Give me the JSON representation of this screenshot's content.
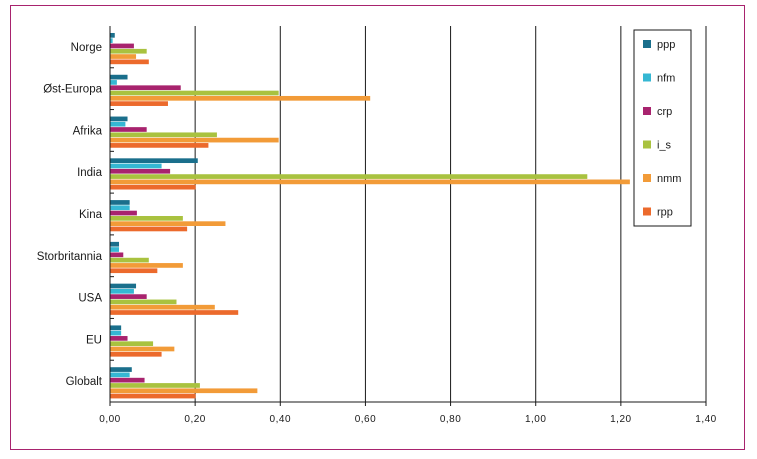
{
  "chart_data": {
    "type": "bar",
    "orientation": "horizontal",
    "categories": [
      "Norge",
      "Øst-Europa",
      "Afrika",
      "India",
      "Kina",
      "Storbritannia",
      "USA",
      "EU",
      "Globalt"
    ],
    "series": [
      {
        "name": "ppp",
        "color": "#1a6f8c",
        "values": [
          0.01,
          0.04,
          0.04,
          0.205,
          0.045,
          0.02,
          0.06,
          0.025,
          0.05
        ]
      },
      {
        "name": "nfm",
        "color": "#35b7d3",
        "values": [
          0.005,
          0.015,
          0.035,
          0.12,
          0.045,
          0.02,
          0.055,
          0.025,
          0.045
        ]
      },
      {
        "name": "crp",
        "color": "#a8236e",
        "values": [
          0.055,
          0.165,
          0.085,
          0.14,
          0.062,
          0.03,
          0.085,
          0.04,
          0.08
        ]
      },
      {
        "name": "i_s",
        "color": "#a9c23f",
        "values": [
          0.085,
          0.395,
          0.25,
          1.12,
          0.17,
          0.09,
          0.155,
          0.1,
          0.21
        ]
      },
      {
        "name": "nmm",
        "color": "#f29b38",
        "values": [
          0.06,
          0.61,
          0.395,
          1.22,
          0.27,
          0.17,
          0.245,
          0.15,
          0.345
        ]
      },
      {
        "name": "rpp",
        "color": "#ec6a2c",
        "values": [
          0.09,
          0.135,
          0.23,
          0.2,
          0.18,
          0.11,
          0.3,
          0.12,
          0.2
        ]
      }
    ],
    "xlim": [
      0,
      1.4
    ],
    "xticks": [
      "0,00",
      "0,20",
      "0,40",
      "0,60",
      "0,80",
      "1,00",
      "1,20",
      "1,40"
    ],
    "grid": "vertical",
    "legend_position": "right"
  }
}
